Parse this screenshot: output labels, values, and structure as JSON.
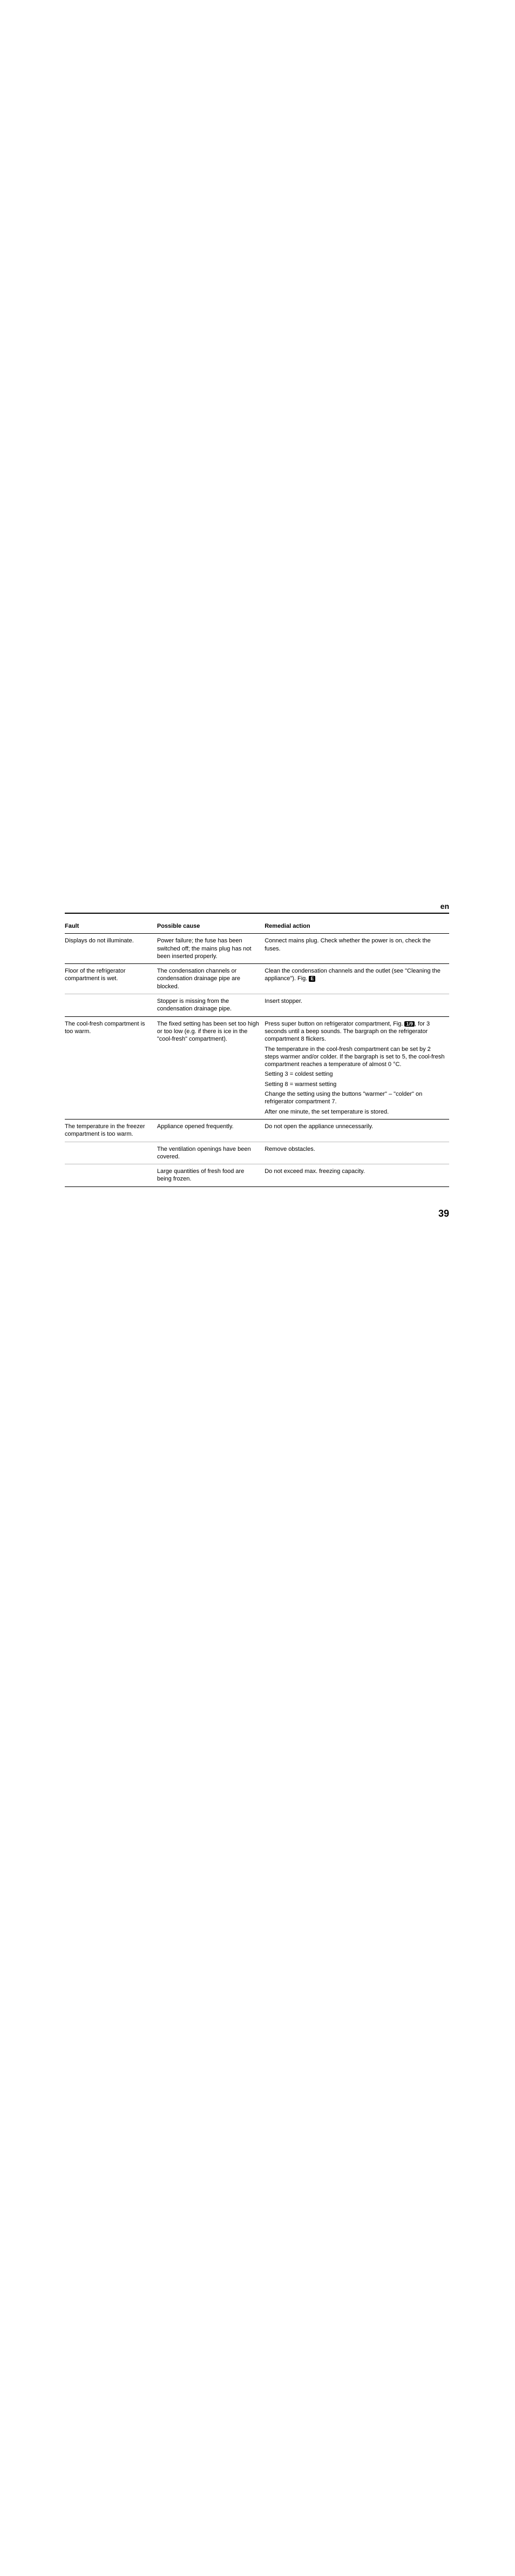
{
  "lang": "en",
  "page_number": "39",
  "headers": {
    "fault": "Fault",
    "cause": "Possible cause",
    "action": "Remedial action"
  },
  "fig": {
    "E": "E",
    "19": "1/9"
  },
  "rows": [
    {
      "fault": "Displays do not illuminate.",
      "cause": "Power failure; the fuse has been switched off; the mains plug has not been inserted properly.",
      "action": "Connect mains plug. Check whether the power is on, check the fuses.",
      "rule": "hr"
    },
    {
      "fault": "Floor of the refrigerator compartment is wet.",
      "cause": "The condensation channels or condensation drainage pipe are blocked.",
      "action_pre": "Clean the condensation channels and the outlet (see \"Cleaning the appliance\"). Fig.",
      "action_fig": "E",
      "rule": "pair"
    },
    {
      "fault": "",
      "cause": "Stopper is missing from the condensation drainage pipe.",
      "action": "Insert stopper.",
      "rule": "hr"
    },
    {
      "fault": "The cool-fresh compartment is too warm.",
      "cause": "The fixed setting has been set too high or too low (e.g. if there is ice in the \"cool-fresh\" compartment).",
      "action_pre": "Press super button on refrigerator compartment, Fig.",
      "action_fig": "19",
      "action_post": ", for 3 seconds until a beep sounds. The bargraph on the refrigerator compartment 8 flickers.",
      "action_blocks": [
        "The temperature in the cool-fresh compartment can be set by 2 steps warmer and/or colder. If the bargraph is set to 5, the cool-fresh compartment reaches a temperature of almost 0 °C.",
        "Setting 3 = coldest setting",
        "Setting 8 = warmest setting",
        "Change the setting using the buttons \"warmer\" – \"colder\" on refrigerator compartment 7.",
        "After one minute, the set temperature is stored."
      ],
      "rule": "hr"
    },
    {
      "fault": "The temperature in the freezer compartment is too warm.",
      "cause": "Appliance opened frequently.",
      "action": "Do not open the appliance unnecessarily.",
      "rule": "pair"
    },
    {
      "fault": "",
      "cause": "The ventilation openings have been covered.",
      "action": "Remove obstacles.",
      "rule": "pair"
    },
    {
      "fault": "",
      "cause": "Large quantities of fresh food are being frozen.",
      "action": "Do not exceed max. freezing capacity.",
      "rule": "hr"
    }
  ]
}
